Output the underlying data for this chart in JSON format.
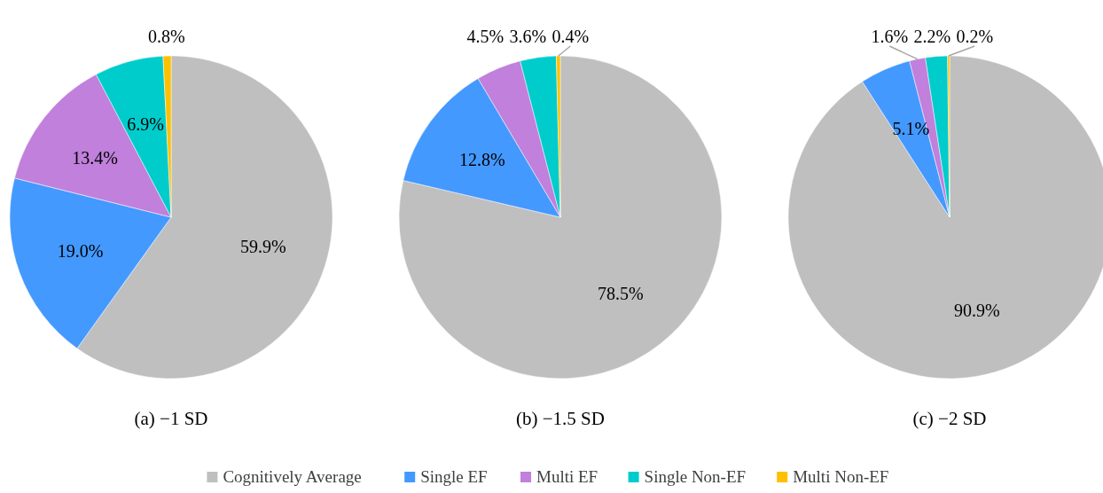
{
  "chart_data": [
    {
      "type": "pie",
      "title": "(a) −1 SD",
      "categories": [
        null,
        null,
        null,
        null,
        null
      ],
      "values": [
        59.9,
        19.0,
        13.4,
        6.9,
        0.8
      ],
      "value_labels": [
        "59.9%",
        "19.0%",
        "13.4%",
        "6.9%",
        "0.8%"
      ],
      "colors": [
        "#bfbfbf",
        "#4499ff",
        "#c080dc",
        "#00cccc",
        "#ffc000"
      ]
    },
    {
      "type": "pie",
      "title": "(b) −1.5 SD",
      "categories": [
        "Cognitively Average",
        "Single EF",
        "Multi EF",
        "Single Non-EF",
        "Multi Non-EF"
      ],
      "values": [
        78.5,
        12.8,
        4.5,
        3.6,
        0.4
      ],
      "value_labels": [
        "78.5%",
        "12.8%",
        "4.5%",
        "3.6%",
        "0.4%"
      ],
      "colors": [
        "#bfbfbf",
        "#4499ff",
        "#c080dc",
        "#00cccc",
        "#ffc000"
      ],
      "legend": "bottom"
    },
    {
      "type": "pie",
      "title": "(c) −2 SD",
      "categories": [
        null,
        null,
        null,
        null,
        null
      ],
      "values": [
        90.9,
        5.1,
        1.6,
        2.2,
        0.2
      ],
      "value_labels": [
        "90.9%",
        "5.1%",
        "1.6%",
        "2.2%",
        "0.2%"
      ],
      "colors": [
        "#bfbfbf",
        "#4499ff",
        "#c080dc",
        "#00cccc",
        "#ffc000"
      ]
    }
  ]
}
